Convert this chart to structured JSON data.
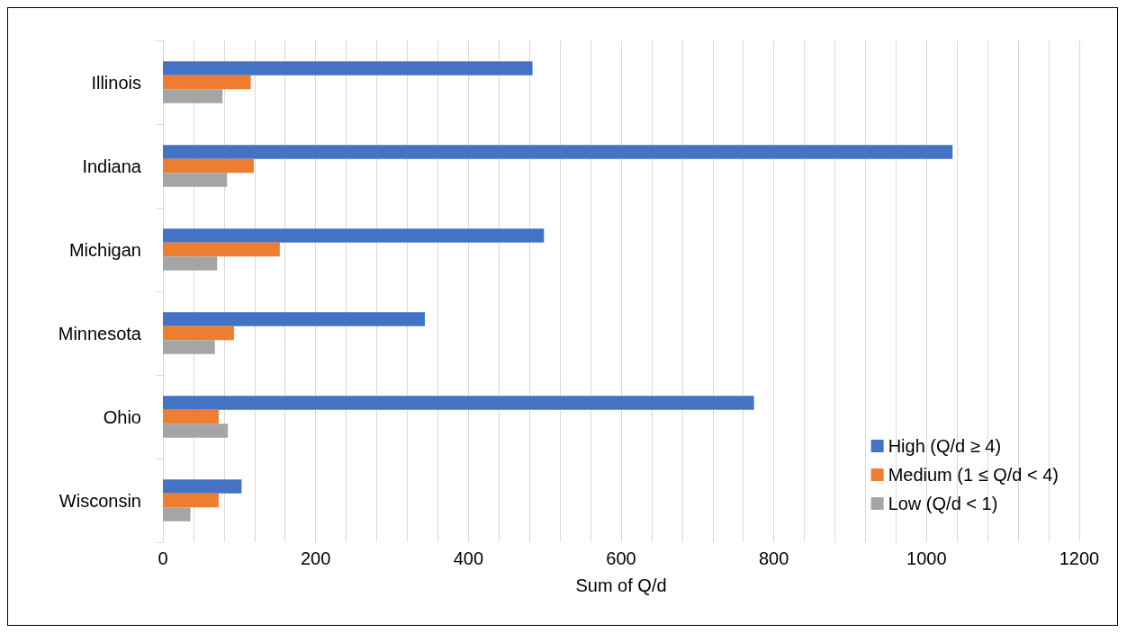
{
  "chart_data": {
    "type": "bar",
    "orientation": "horizontal",
    "xlabel": "Sum of Q/d",
    "categories": [
      "Illinois",
      "Indiana",
      "Michigan",
      "Minnesota",
      "Ohio",
      "Wisconsin"
    ],
    "series": [
      {
        "name": "High (Q/d ≥ 4)",
        "color": "#4472c4",
        "values": [
          484,
          1034,
          499,
          343,
          774,
          103
        ]
      },
      {
        "name": "Medium (1 ≤ Q/d < 4)",
        "color": "#ed7d31",
        "values": [
          115,
          119,
          153,
          93,
          73,
          73
        ]
      },
      {
        "name": "Low (Q/d < 1)",
        "color": "#a5a5a5",
        "values": [
          78,
          84,
          71,
          68,
          85,
          36
        ]
      }
    ],
    "xlim": [
      0,
      1200
    ],
    "xticks": [
      0,
      {
        "value": 40,
        "label": null
      },
      {
        "value": 80,
        "label": null
      },
      {
        "value": 120,
        "label": null
      },
      {
        "value": 160,
        "label": null
      },
      200,
      {
        "value": 240,
        "label": null
      },
      {
        "value": 280,
        "label": null
      },
      {
        "value": 320,
        "label": null
      },
      {
        "value": 360,
        "label": null
      },
      400,
      {
        "value": 440,
        "label": null
      },
      {
        "value": 480,
        "label": null
      },
      {
        "value": 520,
        "label": null
      },
      {
        "value": 560,
        "label": null
      },
      600,
      {
        "value": 640,
        "label": null
      },
      {
        "value": 680,
        "label": null
      },
      {
        "value": 720,
        "label": null
      },
      {
        "value": 760,
        "label": null
      },
      800,
      {
        "value": 840,
        "label": null
      },
      {
        "value": 880,
        "label": null
      },
      {
        "value": 920,
        "label": null
      },
      {
        "value": 960,
        "label": null
      },
      1000,
      {
        "value": 1040,
        "label": null
      },
      {
        "value": 1080,
        "label": null
      },
      {
        "value": 1120,
        "label": null
      },
      {
        "value": 1160,
        "label": null
      },
      1200
    ],
    "grid": "x",
    "legend": "bottom right"
  }
}
